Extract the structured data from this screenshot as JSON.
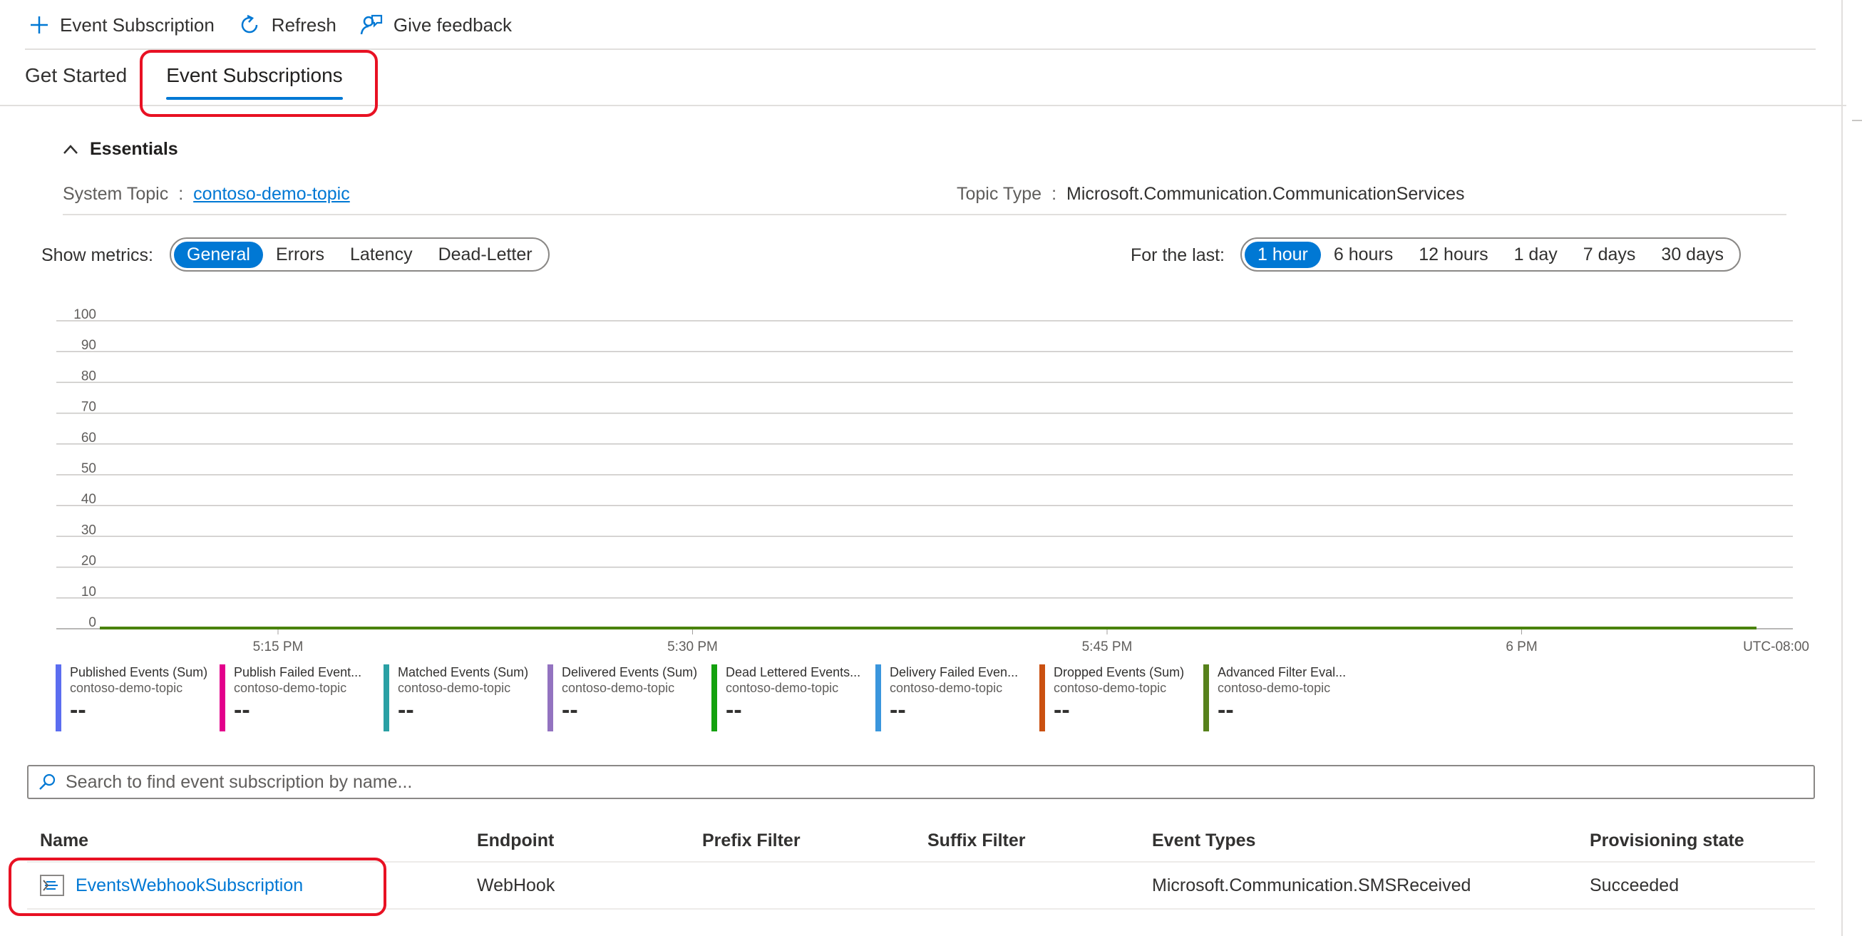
{
  "toolbar": {
    "add_label": "Event Subscription",
    "refresh_label": "Refresh",
    "feedback_label": "Give feedback"
  },
  "tabs": [
    {
      "label": "Get Started",
      "active": false
    },
    {
      "label": "Event Subscriptions",
      "active": true
    }
  ],
  "essentials": {
    "title": "Essentials",
    "system_topic_label": "System Topic",
    "system_topic_value": "contoso-demo-topic",
    "topic_type_label": "Topic Type",
    "topic_type_value": "Microsoft.Communication.CommunicationServices",
    "separator": ":"
  },
  "metrics": {
    "show_label": "Show metrics:",
    "options": [
      "General",
      "Errors",
      "Latency",
      "Dead-Letter"
    ],
    "selected": "General",
    "range_label": "For the last:",
    "ranges": [
      "1 hour",
      "6 hours",
      "12 hours",
      "1 day",
      "7 days",
      "30 days"
    ],
    "selected_range": "1 hour"
  },
  "chart_data": {
    "type": "line",
    "y_ticks": [
      "100",
      "90",
      "80",
      "70",
      "60",
      "50",
      "40",
      "30",
      "20",
      "10",
      "0"
    ],
    "ylim": [
      0,
      100
    ],
    "x_ticks": [
      "5:15 PM",
      "5:30 PM",
      "5:45 PM",
      "6 PM"
    ],
    "timezone": "UTC-08:00",
    "series_color": "#498205",
    "values": [
      0,
      0
    ]
  },
  "legend": [
    {
      "name": "Published Events (Sum)",
      "resource": "contoso-demo-topic",
      "value": "--",
      "color": "#5b6df0"
    },
    {
      "name": "Publish Failed Event...",
      "resource": "contoso-demo-topic",
      "value": "--",
      "color": "#e3008c"
    },
    {
      "name": "Matched Events (Sum)",
      "resource": "contoso-demo-topic",
      "value": "--",
      "color": "#2aa0a4"
    },
    {
      "name": "Delivered Events (Sum)",
      "resource": "contoso-demo-topic",
      "value": "--",
      "color": "#9373c0"
    },
    {
      "name": "Dead Lettered Events...",
      "resource": "contoso-demo-topic",
      "value": "--",
      "color": "#13a10e"
    },
    {
      "name": "Delivery Failed Even...",
      "resource": "contoso-demo-topic",
      "value": "--",
      "color": "#3a96dd"
    },
    {
      "name": "Dropped Events (Sum)",
      "resource": "contoso-demo-topic",
      "value": "--",
      "color": "#ca5010"
    },
    {
      "name": "Advanced Filter Eval...",
      "resource": "contoso-demo-topic",
      "value": "--",
      "color": "#57811b"
    }
  ],
  "search": {
    "placeholder": "Search to find event subscription by name..."
  },
  "table": {
    "columns": [
      "Name",
      "Endpoint",
      "Prefix Filter",
      "Suffix Filter",
      "Event Types",
      "Provisioning state"
    ],
    "rows": [
      {
        "name": "EventsWebhookSubscription",
        "endpoint": "WebHook",
        "prefix": "",
        "suffix": "",
        "event_types": "Microsoft.Communication.SMSReceived",
        "state": "Succeeded"
      }
    ]
  },
  "colors": {
    "accent": "#0078d4",
    "highlight": "#e81123"
  }
}
